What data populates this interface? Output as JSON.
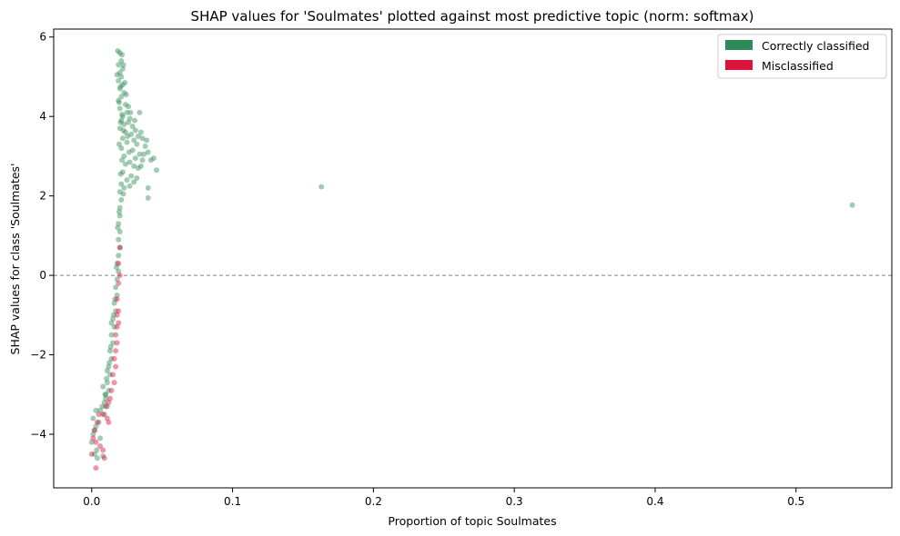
{
  "chart_data": {
    "type": "scatter",
    "title": "SHAP values for 'Soulmates' plotted against most predictive topic (norm: softmax)",
    "xlabel": "Proportion of topic Soulmates",
    "ylabel": "SHAP values for class 'Soulmates'",
    "xlim": [
      -0.027,
      0.568
    ],
    "ylim": [
      -5.35,
      6.2
    ],
    "xticks": [
      0.0,
      0.1,
      0.2,
      0.3,
      0.4,
      0.5
    ],
    "xtick_labels": [
      "0.0",
      "0.1",
      "0.2",
      "0.3",
      "0.4",
      "0.5"
    ],
    "yticks": [
      -4,
      -2,
      0,
      2,
      4,
      6
    ],
    "ytick_labels": [
      "−4",
      "−2",
      "0",
      "2",
      "4",
      "6"
    ],
    "reference_line": {
      "y": 0,
      "style": "dashed",
      "color": "#808080"
    },
    "grid": false,
    "legend_position": "top-right",
    "series": [
      {
        "name": "Correctly classified",
        "color": "#2e8b57",
        "points": [
          [
            0.02,
            5.6
          ],
          [
            0.021,
            5.4
          ],
          [
            0.019,
            5.3
          ],
          [
            0.022,
            5.2
          ],
          [
            0.02,
            5.1
          ],
          [
            0.021,
            5.0
          ],
          [
            0.019,
            4.9
          ],
          [
            0.022,
            4.8
          ],
          [
            0.02,
            4.7
          ],
          [
            0.023,
            4.6
          ],
          [
            0.021,
            4.5
          ],
          [
            0.019,
            4.4
          ],
          [
            0.024,
            4.3
          ],
          [
            0.02,
            4.2
          ],
          [
            0.025,
            4.1
          ],
          [
            0.022,
            4.0
          ],
          [
            0.027,
            3.95
          ],
          [
            0.021,
            3.9
          ],
          [
            0.026,
            3.85
          ],
          [
            0.023,
            3.8
          ],
          [
            0.029,
            3.75
          ],
          [
            0.02,
            3.7
          ],
          [
            0.031,
            3.65
          ],
          [
            0.024,
            3.6
          ],
          [
            0.028,
            3.55
          ],
          [
            0.033,
            3.5
          ],
          [
            0.022,
            3.45
          ],
          [
            0.03,
            3.4
          ],
          [
            0.036,
            3.45
          ],
          [
            0.025,
            3.35
          ],
          [
            0.032,
            3.3
          ],
          [
            0.038,
            3.25
          ],
          [
            0.021,
            3.2
          ],
          [
            0.029,
            3.15
          ],
          [
            0.04,
            3.1
          ],
          [
            0.034,
            3.05
          ],
          [
            0.023,
            3.0
          ],
          [
            0.031,
            2.95
          ],
          [
            0.036,
            2.9
          ],
          [
            0.027,
            2.85
          ],
          [
            0.042,
            2.9
          ],
          [
            0.024,
            2.8
          ],
          [
            0.03,
            2.75
          ],
          [
            0.033,
            2.7
          ],
          [
            0.046,
            2.65
          ],
          [
            0.022,
            2.6
          ],
          [
            0.028,
            2.5
          ],
          [
            0.032,
            2.45
          ],
          [
            0.025,
            2.4
          ],
          [
            0.021,
            2.3
          ],
          [
            0.027,
            2.25
          ],
          [
            0.04,
            2.2
          ],
          [
            0.023,
            2.2
          ],
          [
            0.04,
            1.95
          ],
          [
            0.02,
            2.1
          ],
          [
            0.021,
            1.9
          ],
          [
            0.02,
            1.7
          ],
          [
            0.02,
            1.5
          ],
          [
            0.019,
            1.3
          ],
          [
            0.02,
            1.1
          ],
          [
            0.019,
            0.9
          ],
          [
            0.02,
            0.7
          ],
          [
            0.019,
            0.5
          ],
          [
            0.018,
            0.3
          ],
          [
            0.019,
            0.1
          ],
          [
            0.018,
            -0.1
          ],
          [
            0.017,
            -0.3
          ],
          [
            0.018,
            -0.5
          ],
          [
            0.016,
            -0.7
          ],
          [
            0.017,
            -0.9
          ],
          [
            0.015,
            -1.1
          ],
          [
            0.016,
            -1.3
          ],
          [
            0.014,
            -1.5
          ],
          [
            0.015,
            -1.7
          ],
          [
            0.013,
            -1.9
          ],
          [
            0.014,
            -2.1
          ],
          [
            0.012,
            -2.3
          ],
          [
            0.013,
            -2.5
          ],
          [
            0.011,
            -2.7
          ],
          [
            0.012,
            -2.9
          ],
          [
            0.01,
            -3.1
          ],
          [
            0.011,
            -3.3
          ],
          [
            0.009,
            -3.5
          ],
          [
            0.006,
            -3.4
          ],
          [
            0.003,
            -3.4
          ],
          [
            0.001,
            -3.6
          ],
          [
            0.002,
            -3.9
          ],
          [
            0.0,
            -4.2
          ],
          [
            0.002,
            -4.5
          ],
          [
            0.008,
            -4.55
          ],
          [
            0.004,
            -4.6
          ],
          [
            0.009,
            -3.2
          ],
          [
            0.01,
            -3.0
          ],
          [
            0.008,
            -2.8
          ],
          [
            0.011,
            -2.4
          ],
          [
            0.014,
            -1.2
          ],
          [
            0.163,
            2.23
          ],
          [
            0.54,
            1.77
          ],
          [
            0.0185,
            5.65
          ],
          [
            0.0215,
            5.55
          ],
          [
            0.0225,
            5.3
          ],
          [
            0.018,
            5.05
          ],
          [
            0.0235,
            4.85
          ],
          [
            0.0205,
            4.75
          ],
          [
            0.0245,
            4.55
          ],
          [
            0.0195,
            4.35
          ],
          [
            0.026,
            4.25
          ],
          [
            0.0215,
            4.05
          ],
          [
            0.0275,
            4.1
          ],
          [
            0.034,
            4.1
          ],
          [
            0.0205,
            3.85
          ],
          [
            0.0305,
            3.9
          ],
          [
            0.0225,
            3.65
          ],
          [
            0.035,
            3.6
          ],
          [
            0.0255,
            3.5
          ],
          [
            0.039,
            3.4
          ],
          [
            0.0195,
            3.3
          ],
          [
            0.037,
            3.05
          ],
          [
            0.0265,
            3.1
          ],
          [
            0.044,
            2.95
          ],
          [
            0.0215,
            2.9
          ],
          [
            0.035,
            2.75
          ],
          [
            0.0205,
            2.55
          ],
          [
            0.03,
            2.35
          ],
          [
            0.0225,
            2.05
          ],
          [
            0.0195,
            1.6
          ],
          [
            0.0185,
            1.2
          ],
          [
            0.0175,
            0.2
          ],
          [
            0.0165,
            -0.6
          ],
          [
            0.0155,
            -1.0
          ],
          [
            0.0135,
            -1.8
          ],
          [
            0.0125,
            -2.2
          ],
          [
            0.0105,
            -2.6
          ],
          [
            0.0095,
            -3.0
          ],
          [
            0.0075,
            -3.3
          ],
          [
            0.005,
            -3.7
          ],
          [
            0.003,
            -3.8
          ],
          [
            0.001,
            -4.0
          ],
          [
            0.006,
            -4.1
          ],
          [
            0.0035,
            -4.4
          ]
        ]
      },
      {
        "name": "Misclassified",
        "color": "#dc143c",
        "points": [
          [
            0.02,
            0.7
          ],
          [
            0.019,
            0.3
          ],
          [
            0.02,
            0.0
          ],
          [
            0.019,
            -0.2
          ],
          [
            0.018,
            -0.6
          ],
          [
            0.019,
            -0.9
          ],
          [
            0.018,
            -1.0
          ],
          [
            0.019,
            -1.2
          ],
          [
            0.018,
            -1.3
          ],
          [
            0.017,
            -1.5
          ],
          [
            0.018,
            -1.7
          ],
          [
            0.017,
            -1.9
          ],
          [
            0.016,
            -2.1
          ],
          [
            0.017,
            -2.3
          ],
          [
            0.015,
            -2.5
          ],
          [
            0.016,
            -2.7
          ],
          [
            0.014,
            -2.9
          ],
          [
            0.013,
            -3.1
          ],
          [
            0.012,
            -3.2
          ],
          [
            0.01,
            -3.3
          ],
          [
            0.008,
            -3.5
          ],
          [
            0.011,
            -3.6
          ],
          [
            0.004,
            -3.7
          ],
          [
            0.002,
            -3.9
          ],
          [
            0.001,
            -4.1
          ],
          [
            0.003,
            -4.2
          ],
          [
            0.006,
            -4.3
          ],
          [
            0.0,
            -4.5
          ],
          [
            0.008,
            -4.4
          ],
          [
            0.009,
            -4.6
          ],
          [
            0.003,
            -4.85
          ],
          [
            0.005,
            -3.5
          ],
          [
            0.012,
            -3.7
          ]
        ]
      }
    ]
  }
}
